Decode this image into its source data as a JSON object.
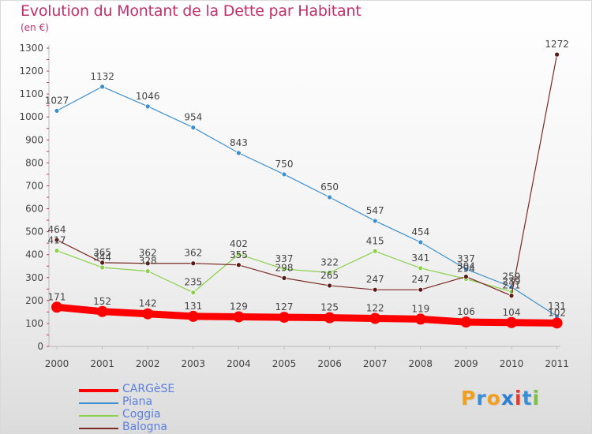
{
  "header": {
    "title": "Evolution du Montant de la Dette par Habitant",
    "unit": "(en €)"
  },
  "logo": {
    "text": "Proxiti",
    "letters": [
      "P",
      "r",
      "o",
      "x",
      "i",
      "t",
      "i"
    ],
    "colors": [
      "#f0a020",
      "#3b8ed6",
      "#f0a020",
      "#2f7fd0",
      "#e23a2a",
      "#3b8ed6",
      "#7cc242"
    ]
  },
  "chart_data": {
    "type": "line",
    "title": "Evolution du Montant de la Dette par Habitant",
    "ylabel": "(en €)",
    "xlabel": "",
    "x": [
      "2000",
      "2001",
      "2002",
      "2003",
      "2004",
      "2005",
      "2006",
      "2007",
      "2008",
      "2009",
      "2010",
      "2011"
    ],
    "ylim": [
      0,
      1300
    ],
    "yticks": [
      "0",
      "100",
      "200",
      "300",
      "400",
      "500",
      "600",
      "700",
      "800",
      "900",
      "1000",
      "1100",
      "1200",
      "1300"
    ],
    "grid": false,
    "legend_position": "bottom-left",
    "series": [
      {
        "name": "CARGèSE",
        "color": "#ff0000",
        "values": [
          171,
          152,
          142,
          131,
          129,
          127,
          125,
          122,
          119,
          106,
          104,
          102
        ],
        "labels": [
          "171",
          "152",
          "142",
          "131",
          "129",
          "127",
          "125",
          "122",
          "119",
          "106",
          "104",
          "102"
        ]
      },
      {
        "name": "Piana",
        "color": "#3e8fd0",
        "values": [
          1027,
          1132,
          1046,
          954,
          843,
          750,
          650,
          547,
          454,
          337,
          259,
          131
        ],
        "labels": [
          "1027",
          "1132",
          "1046",
          "954",
          "843",
          "750",
          "650",
          "547",
          "454",
          "337",
          "259",
          "131"
        ]
      },
      {
        "name": "Coggia",
        "color": "#8ad04a",
        "values": [
          417,
          344,
          328,
          235,
          402,
          337,
          322,
          415,
          341,
          294,
          239,
          ""
        ],
        "labels": [
          "417",
          "344",
          "328",
          "235",
          "402",
          "337",
          "322",
          "415",
          "341",
          "294",
          "239",
          ""
        ]
      },
      {
        "name": "Balogna",
        "color": "#7a2a24",
        "values": [
          464,
          365,
          362,
          362,
          355,
          298,
          265,
          247,
          247,
          304,
          221,
          1272
        ],
        "labels": [
          "464",
          "365",
          "362",
          "362",
          "355",
          "298",
          "265",
          "247",
          "247",
          "304",
          "221",
          "1272"
        ]
      }
    ]
  }
}
